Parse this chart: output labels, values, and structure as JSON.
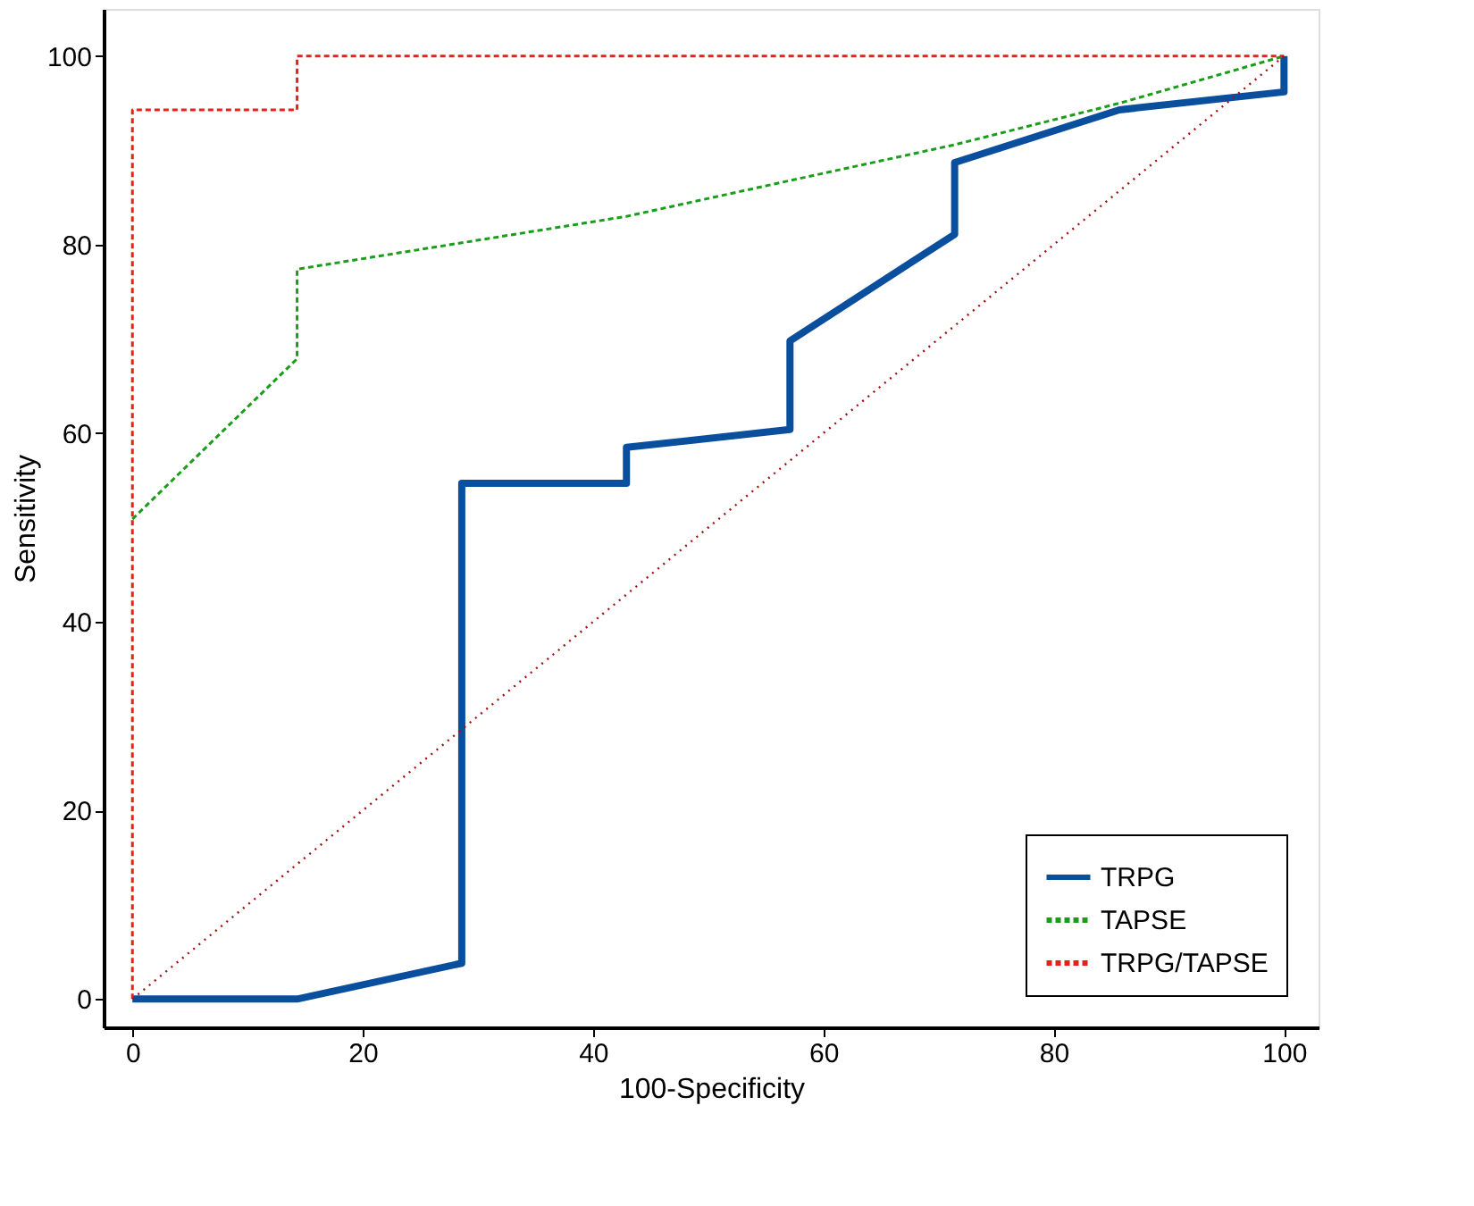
{
  "chart_data": {
    "type": "line",
    "xlabel": "100-Specificity",
    "ylabel": "Sensitivity",
    "xlim": [
      -2.5,
      103
    ],
    "ylim": [
      -3,
      105
    ],
    "xticks": [
      0,
      20,
      40,
      60,
      80,
      100
    ],
    "yticks": [
      0,
      20,
      40,
      60,
      80,
      100
    ],
    "grid": false,
    "legend": "bottom right",
    "marker": "none",
    "series": [
      {
        "name": "TRPG",
        "color": "#0a4f9e",
        "line_style": "solid",
        "x": [
          0,
          14.3,
          28.6,
          28.6,
          42.9,
          42.9,
          57.1,
          57.1,
          71.4,
          71.4,
          85.7,
          100,
          100
        ],
        "values": [
          0,
          0,
          3.8,
          54.7,
          54.7,
          58.5,
          60.4,
          69.8,
          81.1,
          88.7,
          94.3,
          96.2,
          100
        ]
      },
      {
        "name": "TAPSE",
        "color": "#1a9e1a",
        "line_style": "dashed",
        "x": [
          0,
          14.3,
          14.3,
          28.6,
          42.9,
          57.1,
          71.4,
          85.7,
          100
        ],
        "values": [
          50.9,
          67.9,
          77.4,
          80.2,
          83,
          86.8,
          90.6,
          95,
          100
        ]
      },
      {
        "name": "TRPG/TAPSE",
        "color": "#e8201a",
        "line_style": "dashed",
        "x": [
          0,
          0,
          14.3,
          14.3,
          100
        ],
        "values": [
          0,
          94.3,
          94.3,
          100,
          100
        ]
      },
      {
        "color": "#a01010",
        "line_style": "dotted",
        "x": [
          0,
          100
        ],
        "values": [
          0,
          100
        ]
      }
    ]
  }
}
